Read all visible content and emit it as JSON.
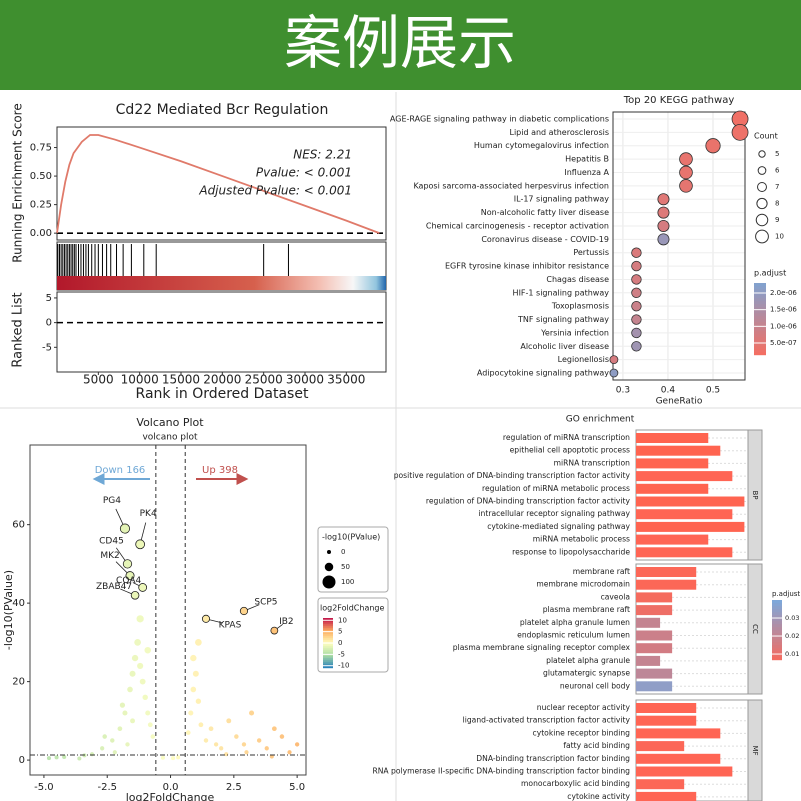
{
  "header": {
    "title": "案例展示"
  },
  "chart_data": [
    {
      "type": "line",
      "title": "Cd22 Mediated Bcr Regulation",
      "annotations": [
        "NES: 2.21",
        "Pvalue: < 0.001",
        "Adjusted Pvalue: < 0.001"
      ],
      "y_label": "Running Enrichment Score",
      "ranked_label": "Ranked List",
      "x_label": "Rank in Ordered Dataset",
      "color": "#e07a6a",
      "x": [
        0,
        500,
        1000,
        1500,
        2000,
        3000,
        4000,
        5000,
        7000,
        10000,
        15000,
        20000,
        25000,
        30000,
        35000,
        39000
      ],
      "values": [
        0,
        0.25,
        0.45,
        0.6,
        0.7,
        0.8,
        0.86,
        0.86,
        0.82,
        0.75,
        0.63,
        0.5,
        0.37,
        0.24,
        0.11,
        0
      ],
      "hits": [
        100,
        300,
        500,
        700,
        900,
        1100,
        1300,
        1500,
        1700,
        1900,
        2100,
        2300,
        2600,
        2900,
        3200,
        3500,
        3800,
        4200,
        4600,
        5000,
        5500,
        6000,
        6500,
        7200,
        8000,
        9000,
        10500,
        12000,
        25000,
        28000
      ],
      "xlim": [
        0,
        39800
      ],
      "xticks": [
        5000,
        10000,
        15000,
        20000,
        25000,
        30000,
        35000
      ],
      "ylim": [
        -0.06,
        0.93
      ],
      "yticks": [
        {
          "value": 0,
          "label": "0.00"
        },
        {
          "value": 0.25,
          "label": "0.25"
        },
        {
          "value": 0.5,
          "label": "0.50"
        },
        {
          "value": 0.75,
          "label": "0.75"
        }
      ],
      "ranked_ylim": [
        -10,
        6.2
      ],
      "ranked_yticks": [
        -5,
        0,
        5
      ]
    },
    {
      "type": "dot",
      "title": "Top 20 KEGG pathway",
      "x_label": "GeneRatio",
      "categories": [
        "AGE-RAGE signaling pathway in diabetic complications",
        "Lipid and atherosclerosis",
        "Human cytomegalovirus infection",
        "Hepatitis B",
        "Influenza A",
        "Kaposi sarcoma-associated herpesvirus infection",
        "IL-17 signaling pathway",
        "Non-alcoholic fatty liver disease",
        "Chemical carcinogenesis - receptor activation",
        "Coronavirus disease - COVID-19",
        "Pertussis",
        "EGFR tyrosine kinase inhibitor resistance",
        "Chagas disease",
        "HIF-1 signaling pathway",
        "Toxoplasmosis",
        "TNF signaling pathway",
        "Yersinia infection",
        "Alcoholic liver disease",
        "Legionellosis",
        "Adipocytokine signaling pathway"
      ],
      "values": [
        0.56,
        0.56,
        0.5,
        0.44,
        0.44,
        0.44,
        0.39,
        0.39,
        0.39,
        0.39,
        0.33,
        0.33,
        0.33,
        0.33,
        0.33,
        0.33,
        0.33,
        0.33,
        0.28,
        0.28
      ],
      "counts": [
        10,
        10,
        9,
        8,
        8,
        8,
        7,
        7,
        7,
        7,
        6,
        6,
        6,
        6,
        6,
        6,
        6,
        6,
        5,
        5
      ],
      "p_adjust": [
        2e-07,
        2.5e-07,
        3e-07,
        3.5e-07,
        3.5e-07,
        4e-07,
        5e-07,
        5.5e-07,
        7e-07,
        1.8e-06,
        6e-07,
        7e-07,
        7e-07,
        8e-07,
        9e-07,
        1e-06,
        1.6e-06,
        1.7e-06,
        7e-07,
        2e-06
      ],
      "xlim": [
        0.278,
        0.571
      ],
      "xticks": [
        0.3,
        0.4,
        0.5
      ],
      "size_title": "Count",
      "size_legend": [
        5,
        6,
        7,
        8,
        9,
        10
      ],
      "color_title": "p.adjust",
      "color_range": [
        1.4e-07,
        2.3e-06
      ],
      "low_color": "#f36f63",
      "high_color": "#7ea3d2",
      "color_ticks": [
        {
          "value": 2e-06,
          "label": "2.0e-06"
        },
        {
          "value": 1.5e-06,
          "label": "1.5e-06"
        },
        {
          "value": 1e-06,
          "label": "1.0e-06"
        },
        {
          "value": 5e-07,
          "label": "5.0e-07"
        }
      ]
    },
    {
      "type": "scatter",
      "title": "Volcano Plot",
      "subtitle": "volcano plot",
      "x_label": "log2FoldChange",
      "y_label": "-log10(PValue)",
      "down_label": "Down 166",
      "up_label": "Up 398",
      "down_color": "#6fa8d6",
      "up_color": "#c0504d",
      "xlim": [
        -5.55,
        5.35
      ],
      "ylim": [
        -3.8,
        80.3
      ],
      "xticks": [
        {
          "value": -5,
          "label": "-5.0"
        },
        {
          "value": -2.5,
          "label": "-2.5"
        },
        {
          "value": 0,
          "label": "0.0"
        },
        {
          "value": 2.5,
          "label": "2.5"
        },
        {
          "value": 5,
          "label": "5.0"
        }
      ],
      "yticks": [
        0,
        20,
        40,
        60
      ],
      "vlines": [
        -0.58,
        0.58
      ],
      "hline": 1.3,
      "points": {
        "x": [
          -4.8,
          -4.2,
          -3.6,
          -3.1,
          -2.7,
          -2.3,
          -2.0,
          -1.8,
          -1.6,
          -1.5,
          -1.4,
          -1.3,
          -1.2,
          -1.1,
          -1.0,
          -0.9,
          -0.8,
          -0.7,
          -1.7,
          -1.5,
          -1.2,
          -0.9,
          -2.2,
          -2.6,
          -1.9,
          -0.3,
          0.1,
          0.3,
          0.7,
          0.8,
          0.9,
          1.0,
          1.1,
          1.2,
          1.4,
          1.6,
          1.8,
          2.0,
          2.3,
          2.6,
          2.9,
          3.2,
          3.5,
          3.8,
          4.1,
          4.4,
          4.7,
          5.0,
          0.9,
          1.1,
          2.2,
          3.0,
          4.0,
          -3.4,
          -4.5
        ],
        "y": [
          0.5,
          0.8,
          0.4,
          1.5,
          3,
          5,
          8,
          12,
          18,
          22,
          26,
          30,
          24,
          20,
          16,
          12,
          9,
          6,
          4,
          10,
          36,
          28,
          2,
          6,
          14,
          0.6,
          0.5,
          0.7,
          7,
          12,
          18,
          22,
          15,
          9,
          5,
          8,
          4,
          3,
          10,
          6,
          4,
          12,
          5,
          3,
          8,
          6,
          2,
          4,
          26,
          30,
          1.5,
          2,
          0.9,
          1.2,
          0.7
        ]
      },
      "labeled": [
        {
          "label": "PG4",
          "x": -1.8,
          "y": 59
        },
        {
          "label": "PK4",
          "x": -1.2,
          "y": 55
        },
        {
          "label": "CD45",
          "x": -1.7,
          "y": 50
        },
        {
          "label": "MK2",
          "x": -1.6,
          "y": 47
        },
        {
          "label": "CQA4",
          "x": -1.1,
          "y": 44
        },
        {
          "label": "ZBAB47",
          "x": -1.4,
          "y": 42
        },
        {
          "label": "SCP5",
          "x": 2.9,
          "y": 38
        },
        {
          "label": "KPAS",
          "x": 1.4,
          "y": 36
        },
        {
          "label": "IB2",
          "x": 4.1,
          "y": 33
        }
      ],
      "size_title": "-log10(PValue)",
      "size_legend": [
        0,
        50,
        100
      ],
      "color_title": "log2FoldChange",
      "color_range": [
        -11,
        11
      ],
      "color_ticks": [
        10,
        5,
        0,
        -5,
        -10
      ],
      "colors": [
        "#2b83ba",
        "#abdda4",
        "#ffffbf",
        "#fdae61",
        "#c51b4a"
      ]
    },
    {
      "type": "bar",
      "title": "GO enrichment",
      "xlim": [
        0,
        9.3
      ],
      "color_title": "p.adjust",
      "color_range": [
        0.0067,
        0.04
      ],
      "low_color": "#f36c61",
      "high_color": "#7ea7d9",
      "color_ticks": [
        0.03,
        0.02,
        0.01
      ],
      "groups": [
        {
          "name": "BP",
          "categories": [
            "regulation of miRNA transcription",
            "epithelial cell apoptotic process",
            "miRNA transcription",
            "positive regulation of DNA-binding transcription factor activity",
            "regulation of miRNA metabolic process",
            "regulation of DNA-binding transcription factor activity",
            "intracellular receptor signaling pathway",
            "cytokine-mediated signaling pathway",
            "miRNA metabolic process",
            "response to lipopolysaccharide"
          ],
          "values": [
            6,
            7,
            6,
            8,
            6,
            9,
            8,
            9,
            6,
            8
          ],
          "p_adjust": [
            0.002,
            0.002,
            0.002,
            0.003,
            0.002,
            0.002,
            0.003,
            0.002,
            0.003,
            0.003
          ]
        },
        {
          "name": "CC",
          "categories": [
            "membrane raft",
            "membrane microdomain",
            "caveola",
            "plasma membrane raft",
            "platelet alpha granule lumen",
            "endoplasmic reticulum lumen",
            "plasma membrane signaling receptor complex",
            "platelet alpha granule",
            "glutamatergic synapse",
            "neuronal cell body"
          ],
          "values": [
            5,
            5,
            3,
            3,
            2,
            3,
            3,
            2,
            3,
            3
          ],
          "p_adjust": [
            0.004,
            0.004,
            0.006,
            0.008,
            0.02,
            0.018,
            0.016,
            0.02,
            0.022,
            0.035
          ]
        },
        {
          "name": "MF",
          "categories": [
            "nuclear receptor activity",
            "ligand-activated transcription factor activity",
            "cytokine receptor binding",
            "fatty acid binding",
            "DNA-binding transcription factor binding",
            "RNA polymerase II-specific DNA-binding transcription factor binding",
            "monocarboxylic acid binding",
            "cytokine activity"
          ],
          "values": [
            5,
            5,
            7,
            4,
            7,
            8,
            4,
            5
          ],
          "p_adjust": [
            0.003,
            0.003,
            0.003,
            0.004,
            0.003,
            0.003,
            0.004,
            0.003
          ]
        }
      ]
    }
  ]
}
